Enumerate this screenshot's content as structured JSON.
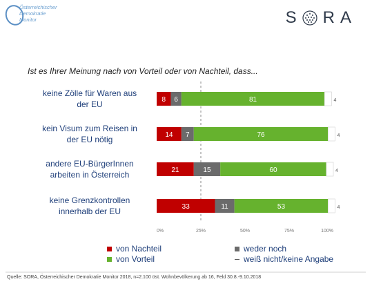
{
  "logo": {
    "org_lines": [
      "Österreichischer",
      "Demokratie",
      "Monitor"
    ],
    "brand": "SORA"
  },
  "question": "Ist es Ihrer Meinung nach von Vorteil oder von Nachteil, dass...",
  "chart_data": {
    "type": "bar",
    "orientation": "horizontal-stacked",
    "categories": [
      [
        "keine Zölle für Waren aus",
        "der EU"
      ],
      [
        "kein Visum zum Reisen in",
        "der EU nötig"
      ],
      [
        "andere EU-BürgerInnen",
        "arbeiten in Österreich"
      ],
      [
        "keine Grenzkontrollen",
        "innerhalb der EU"
      ]
    ],
    "series": [
      {
        "name": "von Nachteil",
        "color": "#c00000",
        "values": [
          8,
          14,
          21,
          33
        ]
      },
      {
        "name": "weder noch",
        "color": "#6b6b6b",
        "values": [
          6,
          7,
          15,
          11
        ]
      },
      {
        "name": "von Vorteil",
        "color": "#66b22e",
        "values": [
          81,
          76,
          60,
          53
        ]
      },
      {
        "name": "weiß nicht/keine Angabe",
        "color": "#ffffff",
        "values": [
          4,
          4,
          4,
          4
        ]
      }
    ],
    "xlim": [
      0,
      100
    ],
    "xticks": [
      "0%",
      "25%",
      "50%",
      "75%",
      "100%"
    ],
    "reference_line": 25
  },
  "source": "Quelle: SORA, Österreichischer Demokratie Monitor 2018, n=2.100 öst. Wohnbevölkerung ab 16, Feld 30.8.-9.10.2018"
}
